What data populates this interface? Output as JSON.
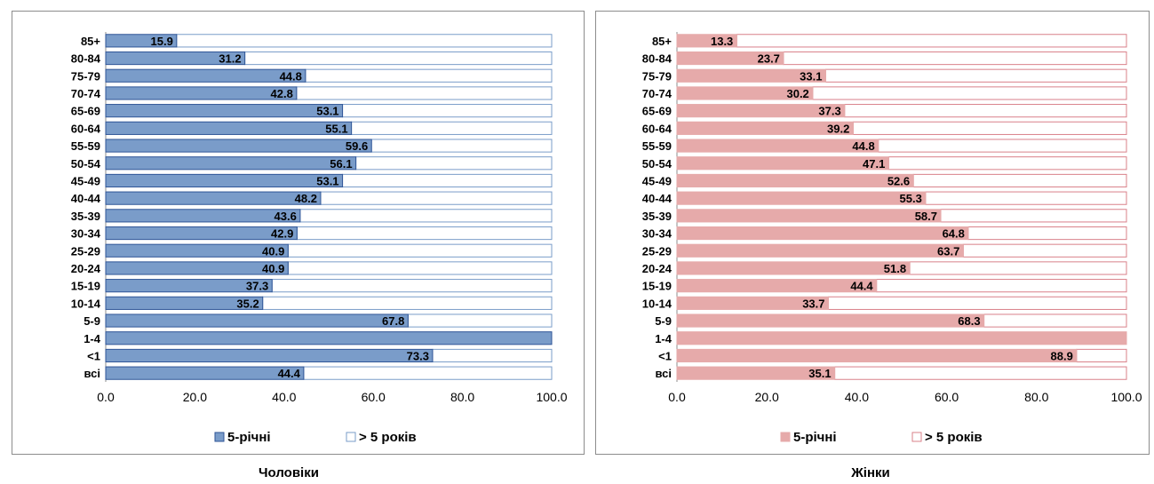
{
  "chart_data": [
    {
      "type": "bar",
      "orientation": "horizontal",
      "stacked": true,
      "caption": "Чоловіки",
      "categories": [
        "85+",
        "80-84",
        "75-79",
        "70-74",
        "65-69",
        "60-64",
        "55-59",
        "50-54",
        "45-49",
        "40-44",
        "35-39",
        "30-34",
        "25-29",
        "20-24",
        "15-19",
        "10-14",
        "5-9",
        "1-4",
        "<1",
        "всі"
      ],
      "series": [
        {
          "name": "5-річні",
          "color": "#7a9cc9",
          "stroke": "#2f5597",
          "values": [
            15.9,
            31.2,
            44.8,
            42.8,
            53.1,
            55.1,
            59.6,
            56.1,
            53.1,
            48.2,
            43.6,
            42.9,
            40.9,
            40.9,
            37.3,
            35.2,
            67.8,
            100.0,
            73.3,
            44.4
          ],
          "labels": [
            "15.9",
            "31.2",
            "44.8",
            "42.8",
            "53.1",
            "55.1",
            "59.6",
            "56.1",
            "53.1",
            "48.2",
            "43.6",
            "42.9",
            "40.9",
            "40.9",
            "37.3",
            "35.2",
            "67.8",
            "",
            "73.3",
            "44.4"
          ]
        },
        {
          "name": "> 5 років",
          "color": "#ffffff",
          "stroke": "#7a9cc9",
          "values": [
            84.1,
            68.8,
            55.2,
            57.2,
            46.9,
            44.9,
            40.4,
            43.9,
            46.9,
            51.8,
            56.4,
            57.1,
            59.1,
            59.1,
            62.7,
            64.8,
            32.2,
            0.0,
            26.7,
            55.6
          ]
        }
      ],
      "xlim": [
        0,
        100
      ],
      "xticks": [
        "0.0",
        "20.0",
        "40.0",
        "60.0",
        "80.0",
        "100.0"
      ],
      "legend": "bottom"
    },
    {
      "type": "bar",
      "orientation": "horizontal",
      "stacked": true,
      "caption": "Жінки",
      "categories": [
        "85+",
        "80-84",
        "75-79",
        "70-74",
        "65-69",
        "60-64",
        "55-59",
        "50-54",
        "45-49",
        "40-44",
        "35-39",
        "30-34",
        "25-29",
        "20-24",
        "15-19",
        "10-14",
        "5-9",
        "1-4",
        "<1",
        "всі"
      ],
      "series": [
        {
          "name": "5-річні",
          "color": "#e6aaaa",
          "stroke": "#e6aaaa",
          "values": [
            13.3,
            23.7,
            33.1,
            30.2,
            37.3,
            39.2,
            44.8,
            47.1,
            52.6,
            55.3,
            58.7,
            64.8,
            63.7,
            51.8,
            44.4,
            33.7,
            68.3,
            100.0,
            88.9,
            35.1
          ],
          "labels": [
            "13.3",
            "23.7",
            "33.1",
            "30.2",
            "37.3",
            "39.2",
            "44.8",
            "47.1",
            "52.6",
            "55.3",
            "58.7",
            "64.8",
            "63.7",
            "51.8",
            "44.4",
            "33.7",
            "68.3",
            "",
            "88.9",
            "35.1"
          ]
        },
        {
          "name": "> 5 років",
          "color": "#ffffff",
          "stroke": "#d9808a",
          "values": [
            86.7,
            76.3,
            66.9,
            69.8,
            62.7,
            60.8,
            55.2,
            52.9,
            47.4,
            44.7,
            41.3,
            35.2,
            36.3,
            48.2,
            55.6,
            66.3,
            31.7,
            0.0,
            11.1,
            64.9
          ]
        }
      ],
      "xlim": [
        0,
        100
      ],
      "xticks": [
        "0.0",
        "20.0",
        "40.0",
        "60.0",
        "80.0",
        "100.0"
      ],
      "legend": "bottom"
    }
  ]
}
